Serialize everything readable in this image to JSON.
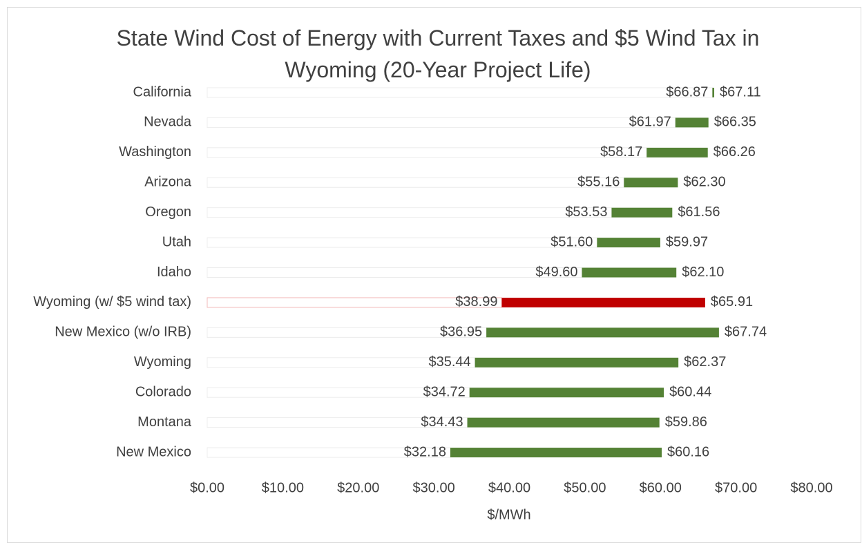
{
  "chart_data": {
    "type": "floating-bar",
    "title": "State Wind Cost of Energy with Current Taxes and $5 Wind Tax in Wyoming (20-Year Project Life)",
    "x_label": "$/MWh",
    "categories": [
      "California",
      "Nevada",
      "Washington",
      "Arizona",
      "Oregon",
      "Utah",
      "Idaho",
      "Wyoming (w/ $5 wind tax)",
      "New Mexico (w/o IRB)",
      "Wyoming",
      "Colorado",
      "Montana",
      "New Mexico"
    ],
    "series": [
      {
        "values": [
          66.87,
          61.97,
          58.17,
          55.16,
          53.53,
          51.6,
          49.6,
          38.99,
          36.95,
          35.44,
          34.72,
          34.43,
          32.18
        ],
        "value_labels": [
          "$66.87",
          "$61.97",
          "$58.17",
          "$55.16",
          "$53.53",
          "$51.60",
          "$49.60",
          "$38.99",
          "$36.95",
          "$35.44",
          "$34.72",
          "$34.43",
          "$32.18"
        ]
      },
      {
        "values": [
          67.11,
          66.35,
          66.26,
          62.3,
          61.56,
          59.97,
          62.1,
          65.91,
          67.74,
          62.37,
          60.44,
          59.86,
          60.16
        ],
        "value_labels": [
          "$67.11",
          "$66.35",
          "$66.26",
          "$62.30",
          "$61.56",
          "$59.97",
          "$62.10",
          "$65.91",
          "$67.74",
          "$62.37",
          "$60.44",
          "$59.86",
          "$60.16"
        ]
      }
    ],
    "colors": [
      "#548235",
      "#548235",
      "#548235",
      "#548235",
      "#548235",
      "#548235",
      "#548235",
      "#c00000",
      "#548235",
      "#548235",
      "#548235",
      "#548235",
      "#548235"
    ],
    "xlim": [
      0,
      80
    ],
    "xticks": [
      {
        "value": 0,
        "label": "$0.00"
      },
      {
        "value": 10,
        "label": "$10.00"
      },
      {
        "value": 20,
        "label": "$20.00"
      },
      {
        "value": 30,
        "label": "$30.00"
      },
      {
        "value": 40,
        "label": "$40.00"
      },
      {
        "value": 50,
        "label": "$50.00"
      },
      {
        "value": 60,
        "label": "$60.00"
      },
      {
        "value": 70,
        "label": "$70.00"
      },
      {
        "value": 80,
        "label": "$80.00"
      }
    ]
  }
}
